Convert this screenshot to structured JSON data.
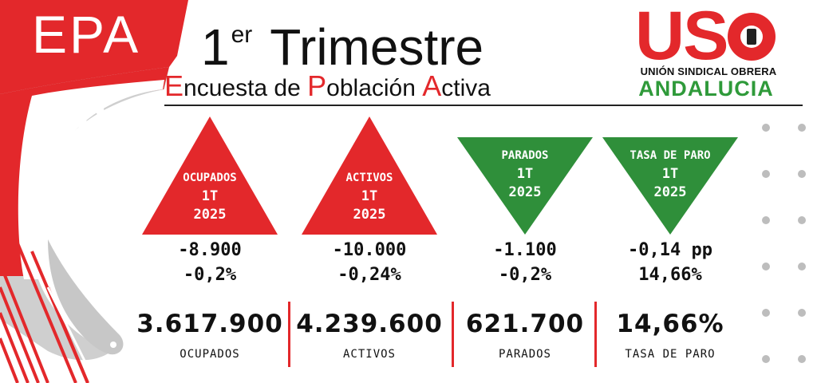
{
  "header": {
    "epa": "EPA",
    "year": "2025",
    "title_number": "1",
    "title_superscript": "er",
    "title_word": "Trimestre",
    "subtitle_words": [
      {
        "cap": "E",
        "rest": "ncuesta de "
      },
      {
        "cap": "P",
        "rest": "oblación "
      },
      {
        "cap": "A",
        "rest": "ctiva"
      }
    ]
  },
  "logo": {
    "brand": "USO",
    "line1": "UNIÓN SINDICAL OBRERA",
    "line2": "ANDALUCIA",
    "colors": {
      "red": "#e3282b",
      "green": "#2f9a3a"
    }
  },
  "indicators": [
    {
      "title": "OCUPADOS",
      "period": "1T",
      "year": "2025",
      "direction": "up",
      "color": "#e3282b",
      "change_abs": "-8.900",
      "change_pct": "-0,2%",
      "value": "3.617.900",
      "label": "OCUPADOS"
    },
    {
      "title": "ACTIVOS",
      "period": "1T",
      "year": "2025",
      "direction": "up",
      "color": "#e3282b",
      "change_abs": "-10.000",
      "change_pct": "-0,24%",
      "value": "4.239.600",
      "label": "ACTIVOS"
    },
    {
      "title": "PARADOS",
      "period": "1T",
      "year": "2025",
      "direction": "down",
      "color": "#2f8f3a",
      "change_abs": "-1.100",
      "change_pct": "-0,2%",
      "value": "621.700",
      "label": "PARADOS"
    },
    {
      "title": "TASA DE PARO",
      "period": "1T",
      "year": "2025",
      "direction": "down",
      "color": "#2f8f3a",
      "change_abs": "-0,14 pp",
      "change_pct": "14,66%",
      "value": "14,66%",
      "label": "TASA DE PARO"
    }
  ]
}
